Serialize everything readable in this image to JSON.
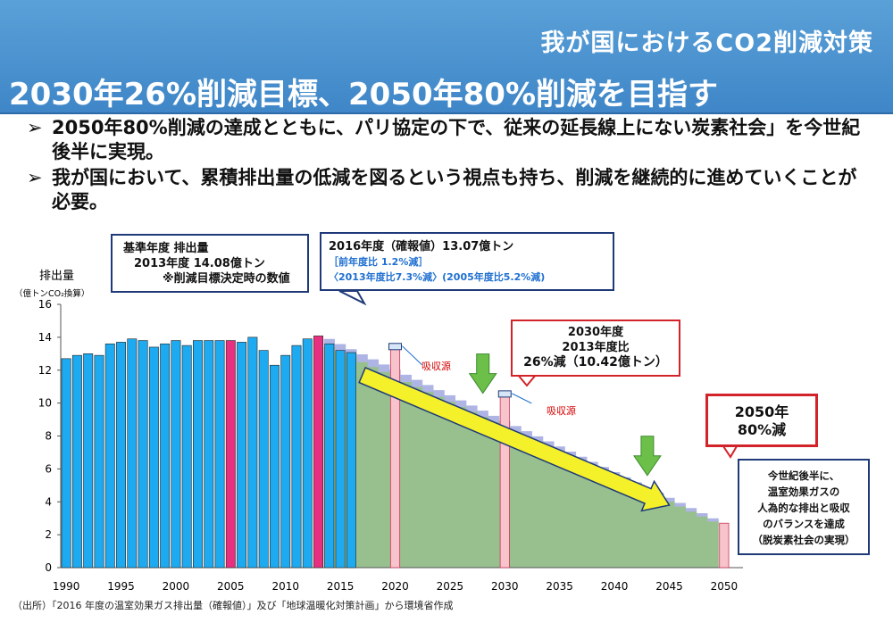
{
  "header": {
    "super_title": "我が国におけるCO2削減対策",
    "main_title": "2030年26%削減目標、2050年80%削減を目指す"
  },
  "bullets": [
    {
      "mark": "➢",
      "text": "2050年80%削減の達成とともに、パリ協定の下で、従来の延長線上にない炭素社会」を今世紀後半に実現。"
    },
    {
      "mark": "➢",
      "text": "我が国において、累積排出量の低減を図るという視点も持ち、削減を継続的に進めていくことが必要。"
    }
  ],
  "callouts": {
    "base_year": {
      "line1": "基準年度 排出量",
      "line2": "2013年度 14.08億トン",
      "line3": "※削減目標決定時の数値"
    },
    "fy2016": {
      "line1": "2016年度（確報値）13.07億トン",
      "line2": "［前年度比 1.2%減］",
      "line3": "〈2013年度比7.3%減〉(2005年度比5.2%減)"
    },
    "fy2030": {
      "line1": "2030年度",
      "line2": "2013年度比",
      "line3": "26%減（10.42億トン）"
    },
    "fy2050": {
      "line1": "2050年",
      "line2": "80%減"
    },
    "century": {
      "line1": "今世紀後半に、",
      "line2": "温室効果ガスの",
      "line3": "人為的な排出と吸収",
      "line4": "のバランスを達成",
      "line5": "（脱炭素社会の実現）"
    },
    "sink_label_1": "吸収源",
    "sink_label_2": "吸収源"
  },
  "source_note": "（出所）「2016 年度の温室効果ガス排出量（確報値）」及び「地球温暖化対策計画」から環境省作成",
  "colors": {
    "header_bg": "#4a93d0",
    "bar_blue": "#1eaaf0",
    "bar_pink": "#e7307f",
    "target_pink": "#f7c4cc",
    "green_area": "#97c08e",
    "lavender_area": "#aeb4e4",
    "arrow_yellow": "#f4f02a",
    "green_arrow": "#6cc04a",
    "callout_red": "#d2232a",
    "callout_navy": "#1f3a78"
  },
  "chart_data": {
    "type": "bar",
    "ylabel": "排出量",
    "yunit": "（億トンCO₂換算）",
    "ylim": [
      0,
      16
    ],
    "yticks": [
      0,
      2,
      4,
      6,
      8,
      10,
      12,
      14,
      16
    ],
    "xticks": [
      1990,
      1995,
      2000,
      2005,
      2010,
      2015,
      2020,
      2025,
      2030,
      2035,
      2040,
      2045,
      2050
    ],
    "series": [
      {
        "values": [
          {
            "x": 1990,
            "y": 12.7
          },
          {
            "x": 1991,
            "y": 12.9
          },
          {
            "x": 1992,
            "y": 13.0
          },
          {
            "x": 1993,
            "y": 12.9
          },
          {
            "x": 1994,
            "y": 13.6
          },
          {
            "x": 1995,
            "y": 13.7
          },
          {
            "x": 1996,
            "y": 13.9
          },
          {
            "x": 1997,
            "y": 13.8
          },
          {
            "x": 1998,
            "y": 13.4
          },
          {
            "x": 1999,
            "y": 13.6
          },
          {
            "x": 2000,
            "y": 13.8
          },
          {
            "x": 2001,
            "y": 13.5
          },
          {
            "x": 2002,
            "y": 13.8
          },
          {
            "x": 2003,
            "y": 13.8
          },
          {
            "x": 2004,
            "y": 13.8
          },
          {
            "x": 2005,
            "y": 13.8
          },
          {
            "x": 2006,
            "y": 13.7
          },
          {
            "x": 2007,
            "y": 14.0
          },
          {
            "x": 2008,
            "y": 13.2
          },
          {
            "x": 2009,
            "y": 12.3
          },
          {
            "x": 2010,
            "y": 12.9
          },
          {
            "x": 2011,
            "y": 13.5
          },
          {
            "x": 2012,
            "y": 13.9
          },
          {
            "x": 2013,
            "y": 14.08
          },
          {
            "x": 2014,
            "y": 13.6
          },
          {
            "x": 2015,
            "y": 13.2
          },
          {
            "x": 2016,
            "y": 13.07
          }
        ]
      },
      {
        "values": [
          {
            "x": 2020,
            "y": 13.3
          },
          {
            "x": 2030,
            "y": 10.42
          },
          {
            "x": 2050,
            "y": 2.7
          }
        ]
      }
    ],
    "path_start": {
      "x": 2014,
      "y": 13.9
    },
    "green_end": {
      "x": 2049,
      "y": 2.8
    },
    "lavender_end": {
      "x": 2049,
      "y": 3.0
    },
    "highlight_years": [
      2005,
      2013
    ],
    "sink_marks": [
      {
        "x": 2020,
        "y": 13.3
      },
      {
        "x": 2030,
        "y": 10.42
      }
    ],
    "down_arrows": [
      {
        "x": 2028,
        "y": 10.6
      },
      {
        "x": 2043,
        "y": 5.6
      }
    ],
    "trend_arrow": {
      "from": {
        "x": 2017,
        "y": 11.7
      },
      "to": {
        "x": 2045,
        "y": 3.8
      }
    }
  }
}
